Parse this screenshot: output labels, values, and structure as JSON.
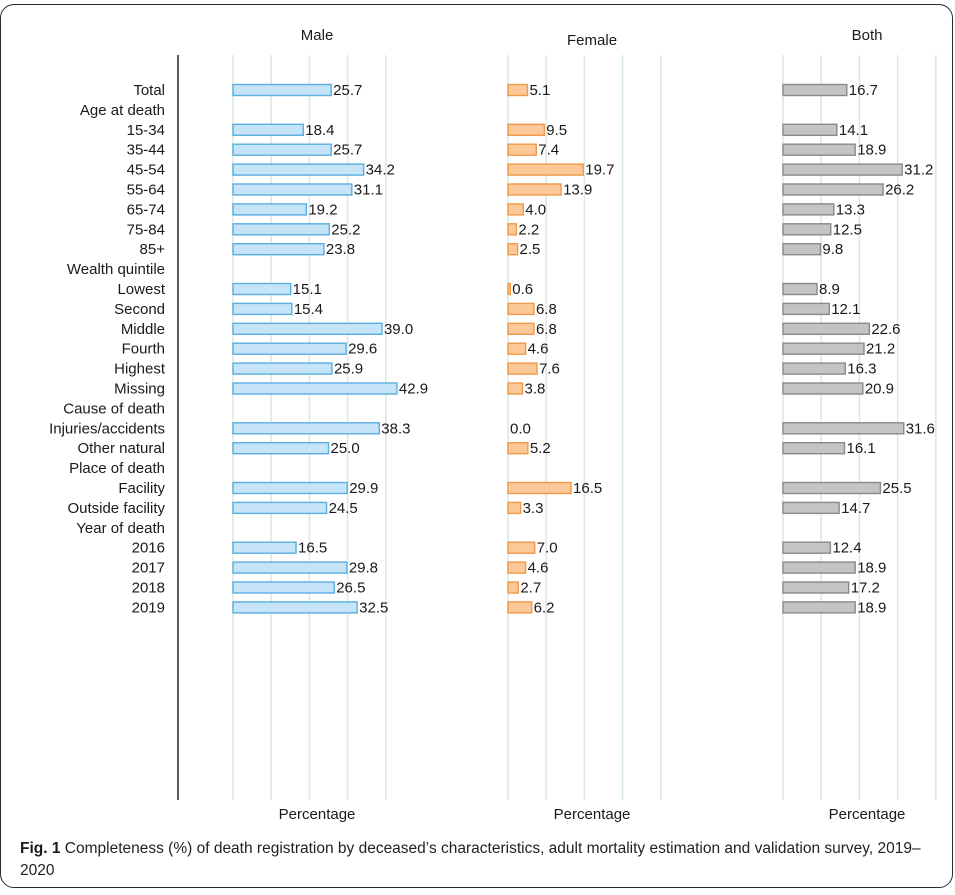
{
  "chart_data": {
    "type": "bar",
    "orientation": "horizontal",
    "panels": [
      {
        "name": "Male",
        "color": "#c6e4f7",
        "stroke": "#5aaee0",
        "xlabel": "Percentage"
      },
      {
        "name": "Female",
        "color": "#fcc898",
        "stroke": "#ef9a48",
        "xlabel": "Percentage"
      },
      {
        "name": "Both",
        "color": "#c4c4c4",
        "stroke": "#8a8a8a",
        "xlabel": "Percentage"
      }
    ],
    "rows": [
      {
        "label": "Total",
        "values": [
          25.7,
          5.1,
          16.7
        ],
        "labels": [
          "25.7",
          "5.1",
          "16.7"
        ]
      },
      {
        "label": "Age at death",
        "header": true
      },
      {
        "label": "15-34",
        "values": [
          18.4,
          9.5,
          14.1
        ],
        "labels": [
          "18.4",
          "9.5",
          "14.1"
        ]
      },
      {
        "label": "35-44",
        "values": [
          25.7,
          7.4,
          18.9
        ],
        "labels": [
          "25.7",
          "7.4",
          "18.9"
        ]
      },
      {
        "label": "45-54",
        "values": [
          34.2,
          19.7,
          31.2
        ],
        "labels": [
          "34.2",
          "19.7",
          "31.2"
        ]
      },
      {
        "label": "55-64",
        "values": [
          31.1,
          13.9,
          26.2
        ],
        "labels": [
          "31.1",
          "13.9",
          "26.2"
        ]
      },
      {
        "label": "65-74",
        "values": [
          19.2,
          4.0,
          13.3
        ],
        "labels": [
          "19.2",
          "4.0",
          "13.3"
        ]
      },
      {
        "label": "75-84",
        "values": [
          25.2,
          2.2,
          12.5
        ],
        "labels": [
          "25.2",
          "2.2",
          "12.5"
        ]
      },
      {
        "label": "85+",
        "values": [
          23.8,
          2.5,
          9.8
        ],
        "labels": [
          "23.8",
          "2.5",
          "9.8"
        ]
      },
      {
        "label": "Wealth quintile",
        "header": true
      },
      {
        "label": "Lowest",
        "values": [
          15.1,
          0.6,
          8.9
        ],
        "labels": [
          "15.1",
          "0.6",
          "8.9"
        ]
      },
      {
        "label": "Second",
        "values": [
          15.4,
          6.8,
          12.1
        ],
        "labels": [
          "15.4",
          "6.8",
          "12.1"
        ]
      },
      {
        "label": "Middle",
        "values": [
          39.0,
          6.8,
          22.6
        ],
        "labels": [
          "39.0",
          "6.8",
          "22.6"
        ]
      },
      {
        "label": "Fourth",
        "values": [
          29.6,
          4.6,
          21.2
        ],
        "labels": [
          "29.6",
          "4.6",
          "21.2"
        ]
      },
      {
        "label": "Highest",
        "values": [
          25.9,
          7.6,
          16.3
        ],
        "labels": [
          "25.9",
          "7.6",
          "16.3"
        ]
      },
      {
        "label": "Missing",
        "values": [
          42.9,
          3.8,
          20.9
        ],
        "labels": [
          "42.9",
          "3.8",
          "20.9"
        ]
      },
      {
        "label": "Cause of death",
        "header": true
      },
      {
        "label": "Injuries/accidents",
        "values": [
          38.3,
          0.0,
          31.6
        ],
        "labels": [
          "38.3",
          "0.0",
          "31.6"
        ]
      },
      {
        "label": "Other natural",
        "values": [
          25.0,
          5.2,
          16.1
        ],
        "labels": [
          "25.0",
          "5.2",
          "16.1"
        ]
      },
      {
        "label": "Place of death",
        "header": true
      },
      {
        "label": "Facility",
        "values": [
          29.9,
          16.5,
          25.5
        ],
        "labels": [
          "29.9",
          "16.5",
          "25.5"
        ]
      },
      {
        "label": "Outside facility",
        "values": [
          24.5,
          3.3,
          14.7
        ],
        "labels": [
          "24.5",
          "3.3",
          "14.7"
        ]
      },
      {
        "label": "Year of death",
        "header": true
      },
      {
        "label": "2016",
        "values": [
          16.5,
          7.0,
          12.4
        ],
        "labels": [
          "16.5",
          "7.0",
          "12.4"
        ]
      },
      {
        "label": "2017",
        "values": [
          29.8,
          4.6,
          18.9
        ],
        "labels": [
          "29.8",
          "4.6",
          "18.9"
        ]
      },
      {
        "label": "2018",
        "values": [
          26.5,
          2.7,
          17.2
        ],
        "labels": [
          "26.5",
          "2.7",
          "17.2"
        ]
      },
      {
        "label": "2019",
        "values": [
          32.5,
          6.2,
          18.9
        ],
        "labels": [
          "32.5",
          "6.2",
          "18.9"
        ]
      }
    ],
    "grid": true,
    "xlim": [
      0,
      45
    ]
  },
  "caption": {
    "fig_label": "Fig. 1",
    "text": " Completeness (%) of death registration by deceased’s characteristics, adult mortality estimation and validation survey, 2019–2020"
  }
}
